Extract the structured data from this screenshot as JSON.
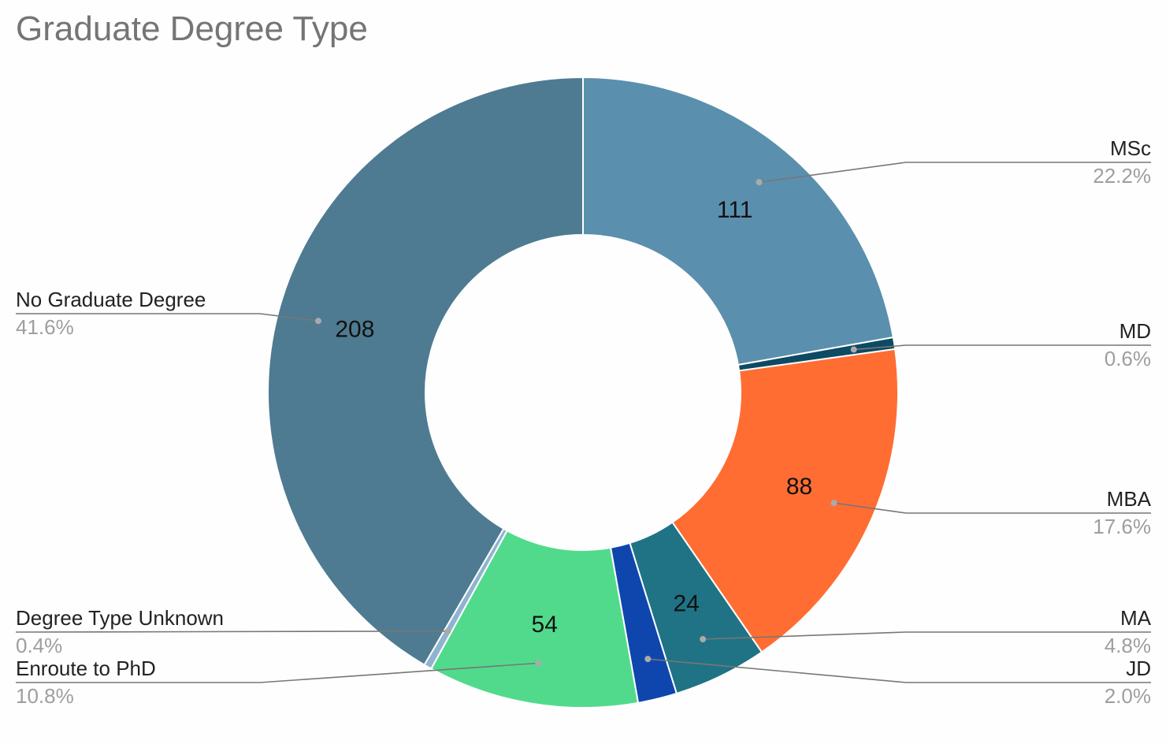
{
  "chart_data": {
    "type": "pie",
    "title": "Graduate Degree Type",
    "donut": true,
    "colors": {
      "leader_line": "#777777",
      "leader_dot": "#aaaaaa",
      "hole": "#ffffff"
    },
    "slices": [
      {
        "label": "MSc",
        "value": 111,
        "percent": "22.2%",
        "color": "#5b8fae",
        "label_side": "right",
        "show_value": true
      },
      {
        "label": "MD",
        "value": 3,
        "percent": "0.6%",
        "color": "#0d4a63",
        "label_side": "right",
        "show_value": false
      },
      {
        "label": "MBA",
        "value": 88,
        "percent": "17.6%",
        "color": "#ff6d33",
        "label_side": "right",
        "show_value": true
      },
      {
        "label": "MA",
        "value": 24,
        "percent": "4.8%",
        "color": "#1f7385",
        "label_side": "right",
        "show_value": true
      },
      {
        "label": "JD",
        "value": 10,
        "percent": "2.0%",
        "color": "#0f46ae",
        "label_side": "right",
        "show_value": false
      },
      {
        "label": "Enroute to PhD",
        "value": 54,
        "percent": "10.8%",
        "color": "#52da8c",
        "label_side": "left",
        "show_value": true
      },
      {
        "label": "Degree Type Unknown",
        "value": 2,
        "percent": "0.4%",
        "color": "#8fb3d0",
        "label_side": "left",
        "show_value": false
      },
      {
        "label": "No Graduate Degree",
        "value": 208,
        "percent": "41.6%",
        "color": "#4e7b92",
        "label_side": "left",
        "show_value": true
      }
    ]
  }
}
